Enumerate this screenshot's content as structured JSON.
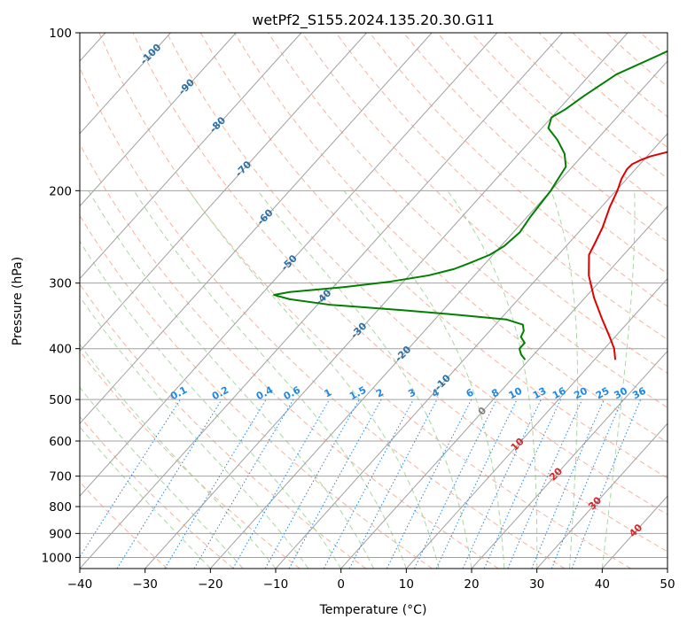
{
  "chart_data": {
    "type": "skew-t log-p",
    "title": "wetPf2_S155.2024.135.20.30.G11",
    "xlabel": "Temperature (°C)",
    "ylabel": "Pressure (hPa)",
    "xlim": [
      -40,
      50
    ],
    "ylim": [
      1050,
      100
    ],
    "y_scale": "log",
    "x_ticks": [
      "−40",
      "−30",
      "−20",
      "−10",
      "0",
      "10",
      "20",
      "30",
      "40",
      "50"
    ],
    "y_ticks": [
      {
        "p": 100,
        "label": "100"
      },
      {
        "p": 200,
        "label": "200"
      },
      {
        "p": 300,
        "label": "300"
      },
      {
        "p": 400,
        "label": "400"
      },
      {
        "p": 500,
        "label": "500"
      },
      {
        "p": 600,
        "label": "600"
      },
      {
        "p": 700,
        "label": "700"
      },
      {
        "p": 800,
        "label": "800"
      },
      {
        "p": 900,
        "label": "900"
      },
      {
        "p": 1000,
        "label": "1000"
      }
    ],
    "grid": true,
    "colors": {
      "temperature": "#e00000",
      "dewpoint": "#008000",
      "isotherm": "#a0a0a0",
      "dry_adiabat": "#f6b39c",
      "moist_adiabat": "#a8d8a0",
      "mixing_ratio": "#1e88e5",
      "isotherm_label_upper": "#2a70a6",
      "isotherm_label_lower": "#d62728",
      "isotherm_label_zero": "#7f7f7f"
    },
    "isotherm_labels_upper": [
      {
        "t": -100,
        "p": 110,
        "label": "-100"
      },
      {
        "t": -90,
        "p": 127,
        "label": "-90"
      },
      {
        "t": -80,
        "p": 150,
        "label": "-80"
      },
      {
        "t": -70,
        "p": 182,
        "label": "-70"
      },
      {
        "t": -60,
        "p": 225,
        "label": "-60"
      },
      {
        "t": -50,
        "p": 275,
        "label": "-50"
      },
      {
        "t": -40,
        "p": 320,
        "label": "-40"
      },
      {
        "t": -30,
        "p": 370,
        "label": "-30"
      },
      {
        "t": -20,
        "p": 410,
        "label": "-20"
      },
      {
        "t": -10,
        "p": 465,
        "label": "-10"
      }
    ],
    "isotherm_labels_lower": [
      {
        "t": 0,
        "p": 527,
        "label": "0"
      },
      {
        "t": 10,
        "p": 610,
        "label": "10"
      },
      {
        "t": 20,
        "p": 695,
        "label": "20"
      },
      {
        "t": 30,
        "p": 790,
        "label": "30"
      },
      {
        "t": 40,
        "p": 890,
        "label": "40"
      }
    ],
    "mixing_ratio_labels": [
      "0.1",
      "0.2",
      "0.4",
      "0.6",
      "1",
      "1.5",
      "2",
      "3",
      "4",
      "6",
      "8",
      "10",
      "13",
      "16",
      "20",
      "25",
      "30",
      "36"
    ],
    "mixing_ratio_values": [
      0.1,
      0.2,
      0.4,
      0.6,
      1,
      1.5,
      2,
      3,
      4,
      6,
      8,
      10,
      13,
      16,
      20,
      25,
      30,
      36
    ],
    "temperature_profile": {
      "p": [
        420,
        400,
        380,
        350,
        320,
        290,
        265,
        250,
        235,
        215,
        200,
        190,
        182,
        178,
        175,
        172,
        168,
        160,
        150,
        140,
        132,
        120,
        110,
        100
      ],
      "t": [
        13.2,
        11.5,
        9.2,
        5.4,
        1.4,
        -2.5,
        -5.3,
        -6.1,
        -7.0,
        -8.7,
        -9.8,
        -10.8,
        -11.3,
        -11.2,
        -10.5,
        -9.5,
        -7.0,
        -2.0,
        4.0,
        9.5,
        13.5,
        18.5,
        21.5,
        24.0
      ]
    },
    "dewpoint_profile": {
      "p": [
        420,
        410,
        400,
        390,
        380,
        370,
        360,
        352,
        345,
        338,
        330,
        322,
        316,
        312,
        305,
        298,
        290,
        282,
        275,
        265,
        255,
        240,
        225,
        210,
        200,
        190,
        180,
        170,
        160,
        152,
        145,
        140,
        132,
        120,
        110,
        100
      ],
      "t": [
        -0.6,
        -2.0,
        -3.0,
        -3.0,
        -4.4,
        -4.8,
        -5.8,
        -9.0,
        -17.0,
        -26.0,
        -38.0,
        -45.0,
        -48.0,
        -46.0,
        -38.0,
        -32.0,
        -27.0,
        -24.0,
        -22.5,
        -20.5,
        -19.5,
        -19.0,
        -19.5,
        -19.8,
        -20.0,
        -20.5,
        -21.0,
        -23.0,
        -26.0,
        -29.0,
        -30.0,
        -29.0,
        -28.0,
        -26.0,
        -22.0,
        -18.0
      ]
    }
  }
}
